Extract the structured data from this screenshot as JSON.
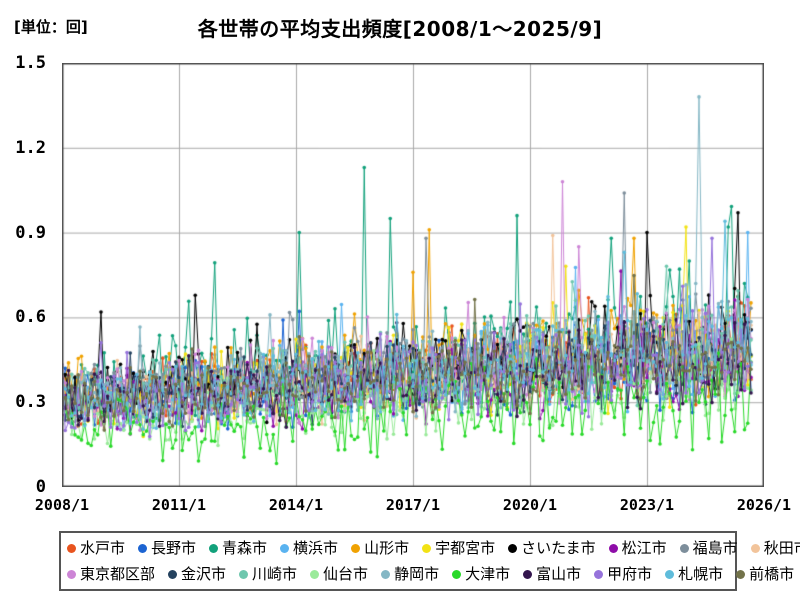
{
  "chart": {
    "unit_label": "[単位：回]",
    "title": "各世帯の平均支出頻度[2008/1～2025/9]"
  },
  "chart_data": {
    "type": "line",
    "title": "各世帯の平均支出頻度[2008/1～2025/9]",
    "ylabel": "[単位：回]",
    "x_axis": {
      "tick_labels": [
        "2008/1",
        "2011/1",
        "2014/1",
        "2017/1",
        "2020/1",
        "2023/1",
        "2026/1"
      ],
      "start_month": "2008/1",
      "data_end_month": "2025/9",
      "axis_months_span": 216,
      "data_point_count": 213
    },
    "y_axis": {
      "tick_labels": [
        "0",
        "0.3",
        "0.6",
        "0.9",
        "1.2",
        "1.5"
      ],
      "ticks": [
        0,
        0.3,
        0.6,
        0.9,
        1.2,
        1.5
      ],
      "ylim": [
        0,
        1.5
      ]
    },
    "grid": true,
    "legend_position": "bottom",
    "legend_per_row": 10,
    "colors": {
      "grid": "#A8A8A8",
      "frame": "#4A4A4A",
      "text": "#000000",
      "background": "#FFFFFF"
    },
    "series": [
      {
        "name": "水戸市",
        "color": "#E8541E",
        "start": 0.32,
        "end": 0.5,
        "noise": 0.13,
        "seed": 101
      },
      {
        "name": "長野市",
        "color": "#1C64D2",
        "start": 0.3,
        "end": 0.46,
        "noise": 0.13,
        "seed": 102
      },
      {
        "name": "青森市",
        "color": "#12A17B",
        "start": 0.36,
        "end": 0.58,
        "noise": 0.17,
        "seed": 103,
        "spike_gain": 0.32,
        "peaks": [
          [
            73,
            0.9
          ],
          [
            93,
            1.13
          ],
          [
            101,
            0.95
          ],
          [
            140,
            0.96
          ],
          [
            169,
            0.88
          ],
          [
            205,
            0.92
          ]
        ]
      },
      {
        "name": "横浜市",
        "color": "#5AB3F0",
        "start": 0.3,
        "end": 0.48,
        "noise": 0.13,
        "seed": 104,
        "peaks": [
          [
            211,
            0.9
          ]
        ]
      },
      {
        "name": "山形市",
        "color": "#F0A202",
        "start": 0.33,
        "end": 0.52,
        "noise": 0.14,
        "seed": 105,
        "peaks": [
          [
            113,
            0.91
          ]
        ]
      },
      {
        "name": "宇都宮市",
        "color": "#F2E215",
        "start": 0.3,
        "end": 0.5,
        "noise": 0.14,
        "seed": 106,
        "peaks": [
          [
            192,
            0.92
          ]
        ]
      },
      {
        "name": "さいたま市",
        "color": "#000000",
        "start": 0.33,
        "end": 0.52,
        "noise": 0.14,
        "seed": 107,
        "peaks": [
          [
            180,
            0.9
          ],
          [
            208,
            0.97
          ]
        ]
      },
      {
        "name": "松江市",
        "color": "#8E0DA8",
        "start": 0.28,
        "end": 0.43,
        "noise": 0.12,
        "seed": 108
      },
      {
        "name": "福島市",
        "color": "#7D8E9B",
        "start": 0.32,
        "end": 0.5,
        "noise": 0.14,
        "seed": 109,
        "peaks": [
          [
            112,
            0.88
          ],
          [
            173,
            1.04
          ]
        ]
      },
      {
        "name": "秋田市",
        "color": "#F2C49B",
        "start": 0.3,
        "end": 0.46,
        "noise": 0.12,
        "seed": 110,
        "peaks": [
          [
            151,
            0.89
          ]
        ]
      },
      {
        "name": "東京都区部",
        "color": "#CD85D6",
        "start": 0.3,
        "end": 0.5,
        "noise": 0.14,
        "seed": 111,
        "peaks": [
          [
            154,
            1.08
          ],
          [
            159,
            0.85
          ]
        ]
      },
      {
        "name": "金沢市",
        "color": "#24425F",
        "start": 0.3,
        "end": 0.46,
        "noise": 0.12,
        "seed": 112
      },
      {
        "name": "川崎市",
        "color": "#6FC7AE",
        "start": 0.32,
        "end": 0.5,
        "noise": 0.13,
        "seed": 113
      },
      {
        "name": "仙台市",
        "color": "#9AEA9A",
        "start": 0.23,
        "end": 0.38,
        "noise": 0.12,
        "seed": 114
      },
      {
        "name": "静岡市",
        "color": "#85B7C5",
        "start": 0.3,
        "end": 0.5,
        "noise": 0.13,
        "seed": 115,
        "peaks": [
          [
            195,
            0.72
          ],
          [
            196,
            1.38
          ],
          [
            197,
            0.6
          ]
        ]
      },
      {
        "name": "大津市",
        "color": "#29D929",
        "start": 0.19,
        "end": 0.33,
        "noise": 0.13,
        "seed": 116
      },
      {
        "name": "富山市",
        "color": "#33154D",
        "start": 0.3,
        "end": 0.45,
        "noise": 0.12,
        "seed": 117
      },
      {
        "name": "甲府市",
        "color": "#9673DB",
        "start": 0.29,
        "end": 0.48,
        "noise": 0.13,
        "seed": 118,
        "peaks": [
          [
            200,
            0.88
          ]
        ]
      },
      {
        "name": "札幌市",
        "color": "#5FBCDB",
        "start": 0.3,
        "end": 0.5,
        "noise": 0.13,
        "seed": 119,
        "peaks": [
          [
            204,
            0.94
          ]
        ]
      },
      {
        "name": "前橋市",
        "color": "#73734A",
        "start": 0.3,
        "end": 0.45,
        "noise": 0.12,
        "seed": 120
      }
    ]
  }
}
